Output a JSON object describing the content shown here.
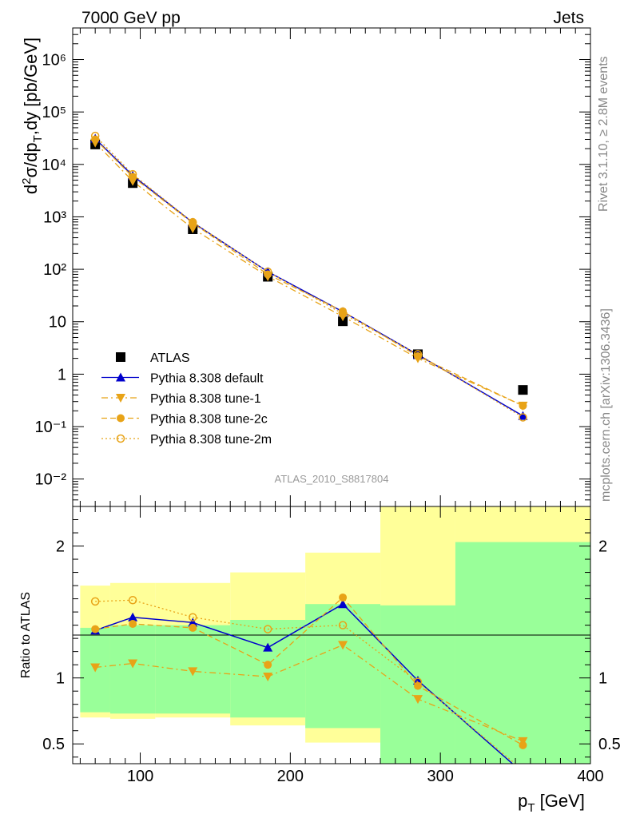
{
  "header": {
    "left": "7000 GeV pp",
    "right": "Jets"
  },
  "side_labels": {
    "rivet": "Rivet 3.1.10, ≥ 2.8M events",
    "mcplots": "mcplots.cern.ch [arXiv:1306.3436]"
  },
  "analysis_label": "ATLAS_2010_S8817804",
  "colors": {
    "data": "#000000",
    "default": "#0000cc",
    "tunes": "#e8a317",
    "band_inner": "#99ff99",
    "band_outer": "#ffff99"
  },
  "chart_data": [
    {
      "type": "scatter",
      "panel": "main",
      "yscale": "log",
      "ylabel": "d²σ/dpT,dy [pb/GeV]",
      "xlim": [
        55,
        400
      ],
      "ylim": [
        0.003,
        4000000
      ],
      "y_tick_labels": [
        "10⁻²",
        "10⁻¹",
        "1",
        "10",
        "10²",
        "10³",
        "10⁴",
        "10⁵",
        "10⁶"
      ],
      "x_tick_labels": [
        "100",
        "200",
        "300",
        "400"
      ],
      "x": [
        70,
        95,
        135,
        185,
        235,
        285,
        355
      ],
      "series": [
        {
          "name": "ATLAS",
          "marker": "square",
          "values": [
            24000,
            4400,
            580,
            72,
            10.2,
            2.4,
            0.5
          ]
        },
        {
          "name": "Pythia 8.308 default",
          "marker": "triangle-up",
          "line": "solid",
          "values": [
            31000,
            6100,
            780,
            90,
            15.5,
            2.35,
            0.16
          ]
        },
        {
          "name": "Pythia 8.308 tune-1",
          "marker": "triangle-down",
          "line": "dashdot",
          "values": [
            26000,
            4800,
            600,
            73,
            12.6,
            2.0,
            0.25
          ]
        },
        {
          "name": "Pythia 8.308 tune-2c",
          "marker": "circle",
          "line": "dashed",
          "values": [
            30000,
            5800,
            760,
            80,
            15.8,
            2.2,
            0.25
          ]
        },
        {
          "name": "Pythia 8.308 tune-2m",
          "marker": "open-circle",
          "line": "dotted",
          "values": [
            35000,
            6500,
            790,
            90,
            14.2,
            2.4,
            0.15
          ]
        }
      ]
    },
    {
      "type": "line",
      "panel": "ratio",
      "ylabel": "Ratio to ATLAS",
      "xlabel": "pT [GeV]",
      "xlim": [
        55,
        400
      ],
      "ylim": [
        0.35,
        2.3
      ],
      "y_tick_labels": [
        "0.5",
        "1",
        "2"
      ],
      "x_tick_labels": [
        "100",
        "200",
        "300",
        "400"
      ],
      "x": [
        70,
        95,
        135,
        185,
        235,
        285,
        355
      ],
      "series": [
        {
          "name": "Pythia 8.308 default",
          "values": [
            1.36,
            1.46,
            1.42,
            1.23,
            1.56,
            0.98,
            0.28
          ]
        },
        {
          "name": "Pythia 8.308 tune-1",
          "values": [
            1.08,
            1.11,
            1.05,
            1.01,
            1.25,
            0.84,
            0.52
          ]
        },
        {
          "name": "Pythia 8.308 tune-2c",
          "values": [
            1.37,
            1.41,
            1.38,
            1.1,
            1.61,
            0.94,
            0.49
          ]
        },
        {
          "name": "Pythia 8.308 tune-2m",
          "values": [
            1.58,
            1.59,
            1.46,
            1.37,
            1.4,
            0.97,
            0.3
          ]
        }
      ],
      "bands": {
        "edges": [
          60,
          80,
          110,
          160,
          210,
          260,
          310,
          400
        ],
        "inner": [
          [
            0.74,
            1.38
          ],
          [
            0.73,
            1.4
          ],
          [
            0.73,
            1.4
          ],
          [
            0.7,
            1.44
          ],
          [
            0.62,
            1.56
          ],
          [
            0.3,
            1.55
          ],
          [
            0.3,
            2.03
          ]
        ],
        "outer": [
          [
            0.7,
            1.7
          ],
          [
            0.69,
            1.72
          ],
          [
            0.7,
            1.72
          ],
          [
            0.64,
            1.8
          ],
          [
            0.51,
            1.95
          ],
          [
            0.3,
            2.3
          ],
          [
            0.3,
            2.3
          ]
        ]
      }
    }
  ]
}
